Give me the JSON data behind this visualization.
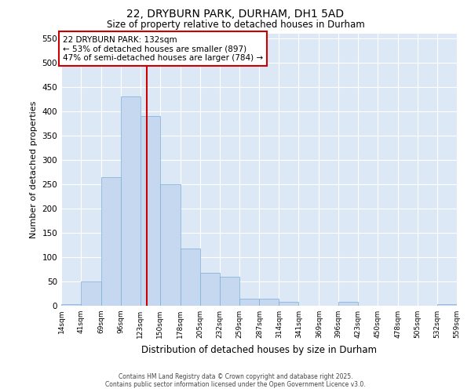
{
  "title1": "22, DRYBURN PARK, DURHAM, DH1 5AD",
  "title2": "Size of property relative to detached houses in Durham",
  "xlabel": "Distribution of detached houses by size in Durham",
  "ylabel": "Number of detached properties",
  "bin_edges": [
    14,
    41,
    69,
    96,
    123,
    150,
    178,
    205,
    232,
    259,
    287,
    314,
    341,
    369,
    396,
    423,
    450,
    478,
    505,
    532,
    559
  ],
  "bar_heights": [
    3,
    50,
    265,
    430,
    390,
    250,
    117,
    68,
    60,
    15,
    15,
    8,
    0,
    0,
    8,
    0,
    0,
    0,
    0,
    3
  ],
  "bar_color": "#c5d8f0",
  "bar_edge_color": "#7aadd4",
  "vline_x": 132,
  "vline_color": "#cc0000",
  "annotation_line1": "22 DRYBURN PARK: 132sqm",
  "annotation_line2": "← 53% of detached houses are smaller (897)",
  "annotation_line3": "47% of semi-detached houses are larger (784) →",
  "annotation_box_color": "#cc0000",
  "ylim": [
    0,
    560
  ],
  "yticks": [
    0,
    50,
    100,
    150,
    200,
    250,
    300,
    350,
    400,
    450,
    500,
    550
  ],
  "bg_color": "#dce8f5",
  "grid_color": "#ffffff",
  "footer1": "Contains HM Land Registry data © Crown copyright and database right 2025.",
  "footer2": "Contains public sector information licensed under the Open Government Licence v3.0."
}
